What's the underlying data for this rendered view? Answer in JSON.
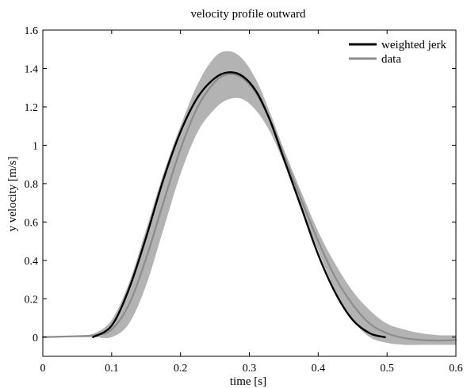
{
  "chart_data": {
    "type": "line",
    "title": "velocity profile outward",
    "xlabel": "time [s]",
    "ylabel": "y velocity [m/s]",
    "xlim": [
      0,
      0.6
    ],
    "ylim": [
      -0.1,
      1.6
    ],
    "x_ticks": [
      0,
      0.1,
      0.2,
      0.3,
      0.4,
      0.5,
      0.6
    ],
    "x_tick_labels": [
      "0",
      "0.1",
      "0.2",
      "0.3",
      "0.4",
      "0.5",
      "0.6"
    ],
    "y_ticks": [
      0,
      0.2,
      0.4,
      0.6,
      0.8,
      1,
      1.2,
      1.4,
      1.6
    ],
    "y_tick_labels": [
      "0",
      "0.2",
      "0.4",
      "0.6",
      "0.8",
      "1",
      "1.2",
      "1.4",
      "1.6"
    ],
    "grid": false,
    "legend_position": "top-right",
    "series": [
      {
        "name": "weighted jerk",
        "color": "#000000",
        "x": [
          0.073,
          0.1,
          0.125,
          0.15,
          0.175,
          0.2,
          0.225,
          0.25,
          0.27,
          0.29,
          0.31,
          0.33,
          0.35,
          0.375,
          0.4,
          0.425,
          0.45,
          0.475,
          0.497
        ],
        "y": [
          0.0,
          0.06,
          0.25,
          0.52,
          0.82,
          1.07,
          1.25,
          1.35,
          1.38,
          1.36,
          1.28,
          1.13,
          0.93,
          0.68,
          0.43,
          0.23,
          0.09,
          0.02,
          0.0
        ]
      },
      {
        "name": "data",
        "color": "#8c8c8c",
        "x": [
          0,
          0.05,
          0.075,
          0.1,
          0.125,
          0.15,
          0.175,
          0.2,
          0.225,
          0.25,
          0.27,
          0.29,
          0.31,
          0.33,
          0.35,
          0.375,
          0.4,
          0.425,
          0.45,
          0.475,
          0.5,
          0.525,
          0.55,
          0.575,
          0.6
        ],
        "y": [
          0.0,
          0.005,
          0.01,
          0.04,
          0.17,
          0.41,
          0.7,
          0.98,
          1.2,
          1.33,
          1.37,
          1.35,
          1.27,
          1.13,
          0.95,
          0.72,
          0.5,
          0.31,
          0.17,
          0.07,
          0.02,
          -0.005,
          -0.015,
          -0.018,
          -0.015
        ]
      }
    ],
    "band": {
      "x": [
        0,
        0.05,
        0.075,
        0.1,
        0.125,
        0.15,
        0.175,
        0.2,
        0.225,
        0.25,
        0.27,
        0.29,
        0.31,
        0.33,
        0.35,
        0.375,
        0.4,
        0.425,
        0.45,
        0.475,
        0.5,
        0.525,
        0.55,
        0.575,
        0.6
      ],
      "upper": [
        0.0,
        0.008,
        0.02,
        0.09,
        0.28,
        0.56,
        0.85,
        1.1,
        1.32,
        1.46,
        1.49,
        1.45,
        1.34,
        1.17,
        0.98,
        0.76,
        0.55,
        0.38,
        0.24,
        0.14,
        0.07,
        0.04,
        0.02,
        0.01,
        0.01
      ],
      "lower": [
        0.0,
        0.0,
        0.0,
        0.0,
        0.07,
        0.27,
        0.56,
        0.85,
        1.07,
        1.19,
        1.24,
        1.24,
        1.18,
        1.07,
        0.91,
        0.68,
        0.45,
        0.24,
        0.09,
        0.0,
        -0.03,
        -0.04,
        -0.04,
        -0.04,
        -0.04
      ],
      "color": "#b3b3b3"
    }
  }
}
